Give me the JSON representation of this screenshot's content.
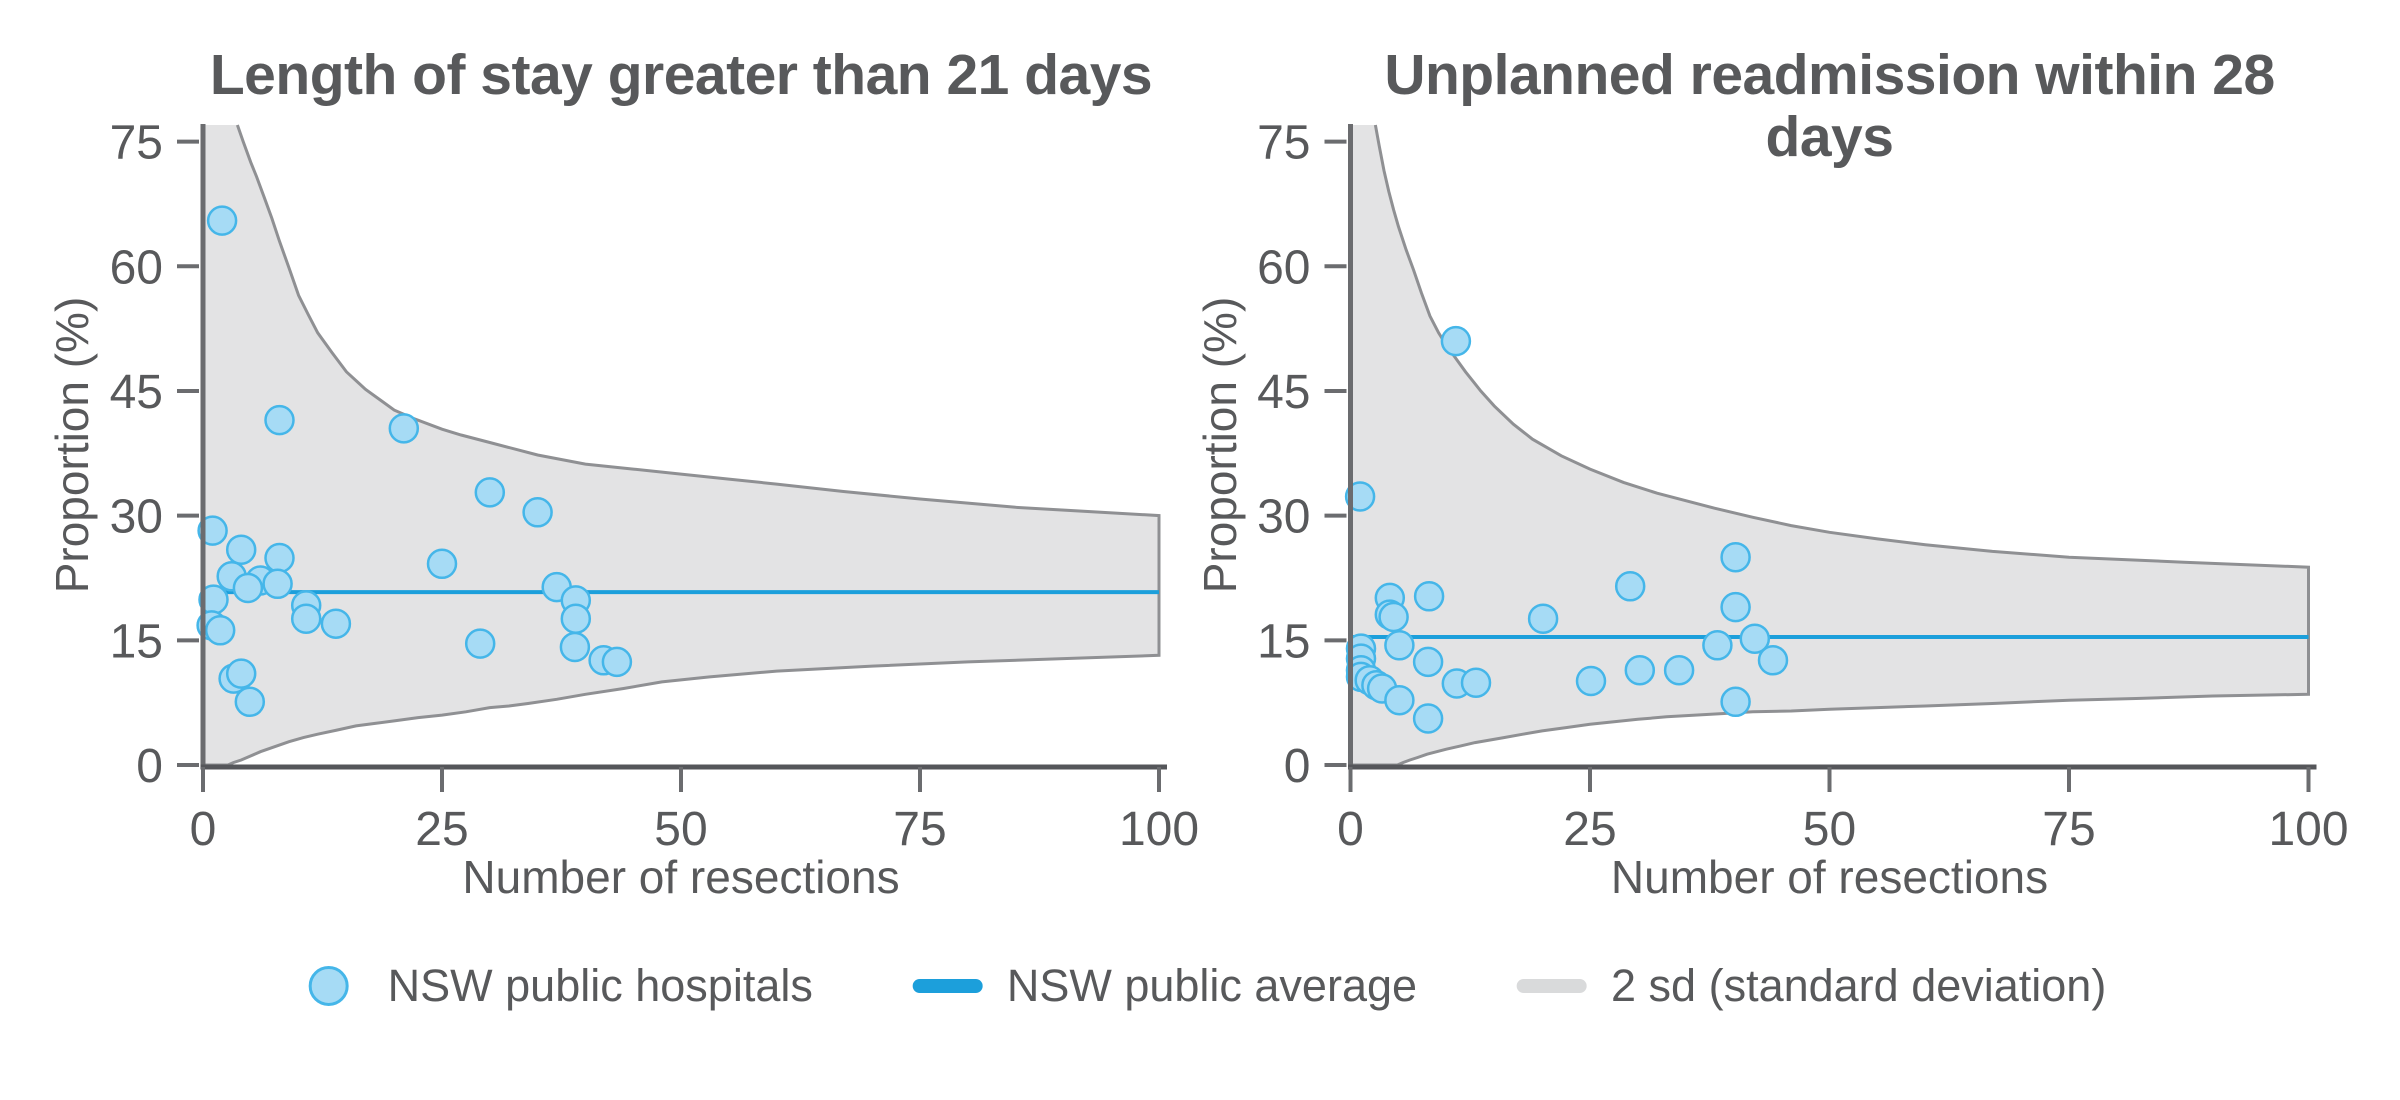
{
  "figure": {
    "background": "#ffffff"
  },
  "colors": {
    "title_text": "#58595b",
    "axis_text": "#58595b",
    "spine": "#6b6c6f",
    "baseline": "#55565a",
    "tick": "#6b6c6f",
    "band_fill": "#e3e3e4",
    "band_stroke": "#8f9093",
    "point_fill": "#a6dbf5",
    "point_stroke": "#45b6e9",
    "average_line": "#1c9fdb",
    "legend_sd_marker": "#d9dadb"
  },
  "legend": [
    {
      "label": "NSW public hospitals",
      "marker": "dot"
    },
    {
      "label": "NSW public average",
      "marker": "line-blue"
    },
    {
      "label": "2 sd (standard deviation)",
      "marker": "line-gray"
    }
  ],
  "chart_data": [
    {
      "type": "scatter",
      "subtype": "funnel-plot",
      "title": "Length of stay greater than 21 days",
      "xlabel": "Number of resections",
      "ylabel": "Proportion (%)",
      "xlim": [
        0,
        100
      ],
      "ylim": [
        0,
        77
      ],
      "xticks": [
        0,
        25,
        50,
        75,
        100
      ],
      "yticks": [
        0,
        15,
        30,
        45,
        60,
        75
      ],
      "grid": false,
      "legend_position": "bottom",
      "average_pct": 20.8,
      "points": [
        [
          2,
          65.5
        ],
        [
          8,
          41.5
        ],
        [
          21,
          40.5
        ],
        [
          30,
          32.8
        ],
        [
          35,
          30.4
        ],
        [
          1,
          28.2
        ],
        [
          4,
          25.9
        ],
        [
          8,
          24.9
        ],
        [
          25,
          24.2
        ],
        [
          3,
          22.7
        ],
        [
          6,
          22.2
        ],
        [
          7.8,
          21.8
        ],
        [
          4.7,
          21.3
        ],
        [
          1.1,
          19.9
        ],
        [
          10.8,
          19.2
        ],
        [
          10.8,
          17.6
        ],
        [
          13.9,
          17.0
        ],
        [
          0.9,
          16.8
        ],
        [
          1.8,
          16.2
        ],
        [
          37,
          21.4
        ],
        [
          39,
          19.8
        ],
        [
          39,
          17.6
        ],
        [
          38.9,
          14.2
        ],
        [
          29,
          14.6
        ],
        [
          41.9,
          12.6
        ],
        [
          43.3,
          12.4
        ],
        [
          3.2,
          10.4
        ],
        [
          4,
          11.0
        ],
        [
          4.9,
          7.6
        ]
      ],
      "band_upper": [
        [
          0,
          77
        ],
        [
          3.6,
          77
        ],
        [
          4.2,
          75
        ],
        [
          5,
          72.5
        ],
        [
          5.6,
          70.8
        ],
        [
          6.4,
          68.3
        ],
        [
          7.2,
          65.8
        ],
        [
          8,
          63
        ],
        [
          9,
          59.8
        ],
        [
          10,
          56.5
        ],
        [
          11,
          54.2
        ],
        [
          12,
          52
        ],
        [
          13.5,
          49.6
        ],
        [
          15,
          47.3
        ],
        [
          17,
          45.2
        ],
        [
          20,
          42.7
        ],
        [
          22,
          41.7
        ],
        [
          25,
          40.4
        ],
        [
          27,
          39.7
        ],
        [
          30,
          38.8
        ],
        [
          35,
          37.3
        ],
        [
          40,
          36.2
        ],
        [
          45,
          35.6
        ],
        [
          50,
          35
        ],
        [
          55,
          34.4
        ],
        [
          60,
          33.8
        ],
        [
          67,
          32.9
        ],
        [
          75,
          32
        ],
        [
          85,
          31
        ],
        [
          100,
          30
        ]
      ],
      "band_lower": [
        [
          0,
          0
        ],
        [
          2.6,
          0
        ],
        [
          3.2,
          0.3
        ],
        [
          4,
          0.6
        ],
        [
          5,
          1.1
        ],
        [
          6,
          1.6
        ],
        [
          7.5,
          2.2
        ],
        [
          9,
          2.8
        ],
        [
          10.5,
          3.3
        ],
        [
          12,
          3.7
        ],
        [
          14,
          4.2
        ],
        [
          16,
          4.7
        ],
        [
          18,
          5
        ],
        [
          20,
          5.3
        ],
        [
          22.5,
          5.7
        ],
        [
          25,
          6
        ],
        [
          27.5,
          6.4
        ],
        [
          30,
          6.9
        ],
        [
          32,
          7.1
        ],
        [
          34,
          7.4
        ],
        [
          37,
          7.9
        ],
        [
          40,
          8.5
        ],
        [
          44,
          9.2
        ],
        [
          48,
          10
        ],
        [
          53,
          10.6
        ],
        [
          60,
          11.3
        ],
        [
          70,
          11.9
        ],
        [
          80,
          12.4
        ],
        [
          90,
          12.8
        ],
        [
          100,
          13.2
        ]
      ]
    },
    {
      "type": "scatter",
      "subtype": "funnel-plot",
      "title": "Unplanned readmission within 28 days",
      "xlabel": "Number of resections",
      "ylabel": "Proportion (%)",
      "xlim": [
        0,
        100
      ],
      "ylim": [
        0,
        77
      ],
      "xticks": [
        0,
        25,
        50,
        75,
        100
      ],
      "yticks": [
        0,
        15,
        30,
        45,
        60,
        75
      ],
      "grid": false,
      "legend_position": "bottom",
      "average_pct": 15.4,
      "points": [
        [
          11,
          51
        ],
        [
          1,
          32.3
        ],
        [
          1.1,
          14
        ],
        [
          1.1,
          12.8
        ],
        [
          1.1,
          11.4
        ],
        [
          1.1,
          10.6
        ],
        [
          2,
          10.2
        ],
        [
          2.7,
          9.6
        ],
        [
          3.3,
          9.2
        ],
        [
          4.1,
          20.1
        ],
        [
          4.1,
          18.1
        ],
        [
          4.5,
          17.8
        ],
        [
          5.1,
          14.4
        ],
        [
          5.1,
          7.8
        ],
        [
          8.2,
          20.3
        ],
        [
          8.1,
          12.4
        ],
        [
          8.1,
          5.6
        ],
        [
          11.1,
          9.8
        ],
        [
          13.1,
          9.9
        ],
        [
          20.1,
          17.6
        ],
        [
          25.1,
          10.1
        ],
        [
          29.2,
          21.5
        ],
        [
          30.2,
          11.4
        ],
        [
          34.3,
          11.4
        ],
        [
          38.3,
          14.4
        ],
        [
          40.2,
          25
        ],
        [
          40.2,
          19
        ],
        [
          40.2,
          7.6
        ],
        [
          42.2,
          15.2
        ],
        [
          44.1,
          12.6
        ]
      ],
      "band_upper": [
        [
          0,
          77
        ],
        [
          2.6,
          77
        ],
        [
          3,
          74.5
        ],
        [
          3.5,
          71.5
        ],
        [
          4,
          69
        ],
        [
          4.5,
          66.8
        ],
        [
          5,
          64.8
        ],
        [
          5.8,
          62
        ],
        [
          6.6,
          59.5
        ],
        [
          7.4,
          56.8
        ],
        [
          8.3,
          54
        ],
        [
          9.2,
          52
        ],
        [
          10,
          50.5
        ],
        [
          11,
          48.9
        ],
        [
          12,
          47.3
        ],
        [
          13.6,
          45
        ],
        [
          15,
          43.2
        ],
        [
          17,
          41
        ],
        [
          19,
          39.2
        ],
        [
          22,
          37.2
        ],
        [
          25,
          35.6
        ],
        [
          28.5,
          34
        ],
        [
          32,
          32.7
        ],
        [
          35,
          31.8
        ],
        [
          38,
          30.9
        ],
        [
          42,
          29.8
        ],
        [
          46,
          28.8
        ],
        [
          50,
          28
        ],
        [
          55,
          27.2
        ],
        [
          60,
          26.5
        ],
        [
          67,
          25.7
        ],
        [
          75,
          25
        ],
        [
          87,
          24.4
        ],
        [
          100,
          23.8
        ]
      ],
      "band_lower": [
        [
          0,
          0
        ],
        [
          4.9,
          0
        ],
        [
          5.5,
          0.3
        ],
        [
          6.2,
          0.6
        ],
        [
          7,
          0.9
        ],
        [
          8,
          1.3
        ],
        [
          9,
          1.6
        ],
        [
          10,
          1.9
        ],
        [
          11.5,
          2.3
        ],
        [
          13,
          2.7
        ],
        [
          14.5,
          3
        ],
        [
          16,
          3.3
        ],
        [
          18,
          3.7
        ],
        [
          20,
          4.1
        ],
        [
          22.5,
          4.5
        ],
        [
          25,
          4.9
        ],
        [
          27.5,
          5.2
        ],
        [
          30,
          5.5
        ],
        [
          33,
          5.8
        ],
        [
          36,
          6
        ],
        [
          39,
          6.2
        ],
        [
          42,
          6.4
        ],
        [
          46,
          6.5
        ],
        [
          50,
          6.7
        ],
        [
          55,
          6.9
        ],
        [
          60,
          7.1
        ],
        [
          67,
          7.4
        ],
        [
          75,
          7.8
        ],
        [
          82,
          8
        ],
        [
          90,
          8.3
        ],
        [
          100,
          8.5
        ]
      ]
    }
  ]
}
